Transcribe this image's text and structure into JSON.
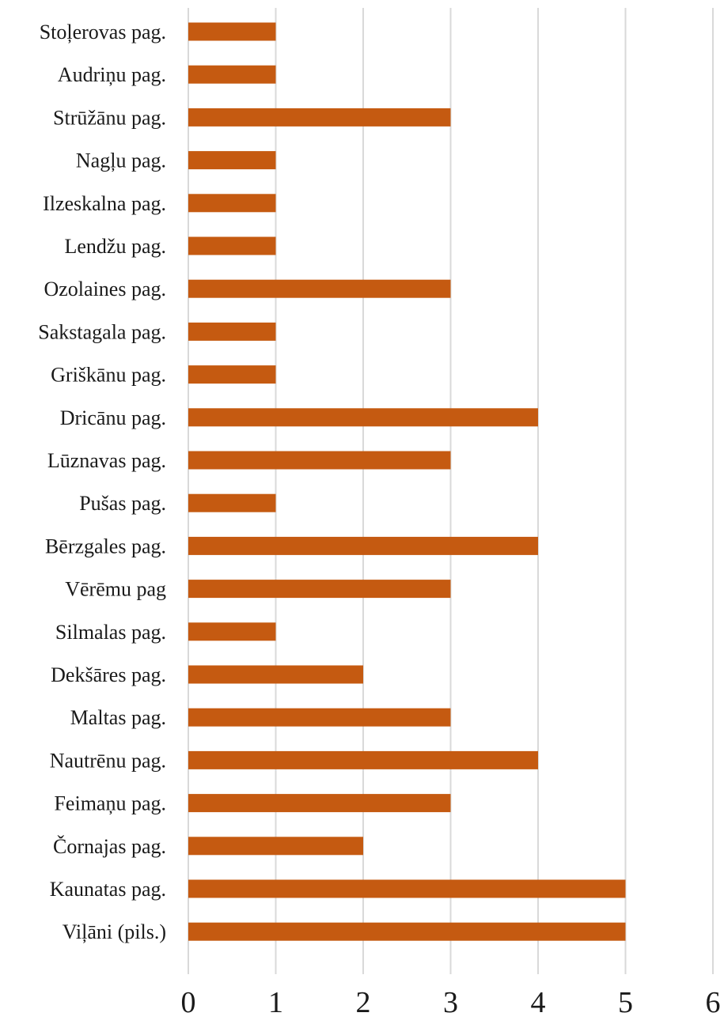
{
  "chart_data": {
    "type": "bar",
    "orientation": "horizontal",
    "categories": [
      "Stoļerovas pag.",
      "Audriņu pag.",
      "Strūžānu pag.",
      "Nagļu pag.",
      "Ilzeskalna pag.",
      "Lendžu pag.",
      "Ozolaines pag.",
      "Sakstagala pag.",
      "Griškānu pag.",
      "Dricānu pag.",
      "Lūznavas pag.",
      "Pušas pag.",
      "Bērzgales pag.",
      "Vērēmu pag",
      "Silmalas pag.",
      "Dekšāres pag.",
      "Maltas pag.",
      "Nautrēnu pag.",
      "Feimaņu pag.",
      "Čornajas pag.",
      "Kaunatas pag.",
      "Viļāni (pils.)"
    ],
    "values": [
      1,
      1,
      3,
      1,
      1,
      1,
      3,
      1,
      1,
      4,
      3,
      1,
      4,
      3,
      1,
      2,
      3,
      4,
      3,
      2,
      5,
      5
    ],
    "xlim": [
      0,
      6
    ],
    "x_ticks": [
      "0",
      "1",
      "2",
      "3",
      "4",
      "5",
      "6"
    ],
    "title": "",
    "xlabel": "",
    "ylabel": "",
    "grid": "vertical",
    "legend": "none",
    "bar_color": "#c55a11",
    "grid_color": "#d9d9d9"
  }
}
